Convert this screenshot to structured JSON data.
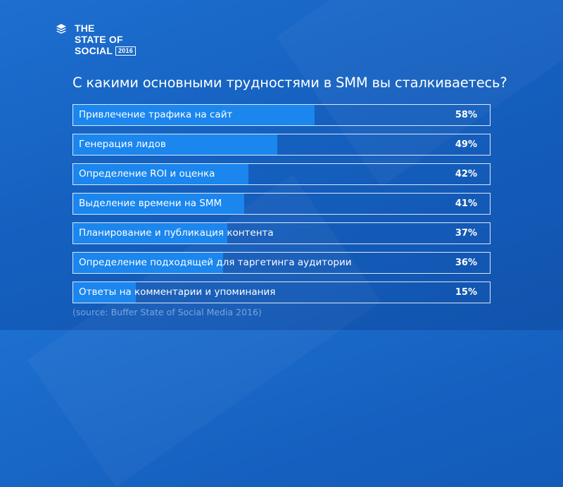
{
  "brand": {
    "line1": "THE",
    "line2": "STATE OF",
    "line3": "SOCIAL",
    "year": "2016",
    "icon": "buffer-stack-icon"
  },
  "chart_data": {
    "type": "bar",
    "orientation": "horizontal",
    "title": "С какими основными трудностями в SMM вы сталкиваетесь?",
    "categories": [
      "Привлечение трафика на сайт",
      "Генерация лидов",
      "Определение ROI и оценка",
      "Выделение времени на SMM",
      "Планирование и публикация контента",
      "Определение подходящей для таргетинга аудитории",
      "Ответы на комментарии и упоминания"
    ],
    "values": [
      58,
      49,
      42,
      41,
      37,
      36,
      15
    ],
    "value_labels": [
      "58%",
      "49%",
      "42%",
      "41%",
      "37%",
      "36%",
      "15%"
    ],
    "unit": "%",
    "xlim": [
      0,
      100
    ],
    "grid": false,
    "colors": {
      "background": "#1560bf",
      "bar": "#1a86ee",
      "border": "#ffffff",
      "text": "#ffffff"
    }
  },
  "source": "(source: Buffer State of Social Media 2016)"
}
